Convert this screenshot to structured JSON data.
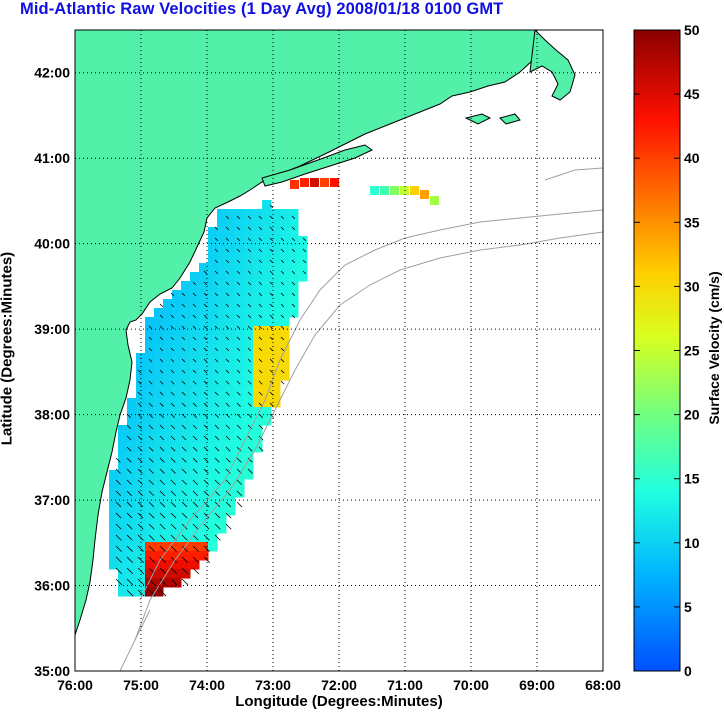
{
  "title": "Mid-Atlantic Raw Velocities (1 Day Avg) 2008/01/18 0100 GMT",
  "axes": {
    "xlabel": "Longitude (Degrees:Minutes)",
    "ylabel": "Latitude (Degrees:Minutes)",
    "x_ticks": [
      "76:00",
      "75:00",
      "74:00",
      "73:00",
      "72:00",
      "71:00",
      "70:00",
      "69:00",
      "68:00"
    ],
    "y_ticks": [
      "35:00",
      "36:00",
      "37:00",
      "38:00",
      "39:00",
      "40:00",
      "41:00",
      "42:00"
    ],
    "x_range": [
      -76,
      -68
    ],
    "y_range": [
      35,
      42.5
    ],
    "grid": "dotted"
  },
  "colorbar": {
    "label": "Surface Velocity (cm/s)",
    "ticks": [
      "0",
      "5",
      "10",
      "15",
      "20",
      "25",
      "30",
      "35",
      "40",
      "45",
      "50"
    ],
    "range": [
      0,
      50
    ],
    "colormap": "jet"
  },
  "colors": {
    "land": "#52f0a8",
    "water": "#ffffff",
    "isobath": "#a0a0a0",
    "title": "#1010e0"
  }
}
